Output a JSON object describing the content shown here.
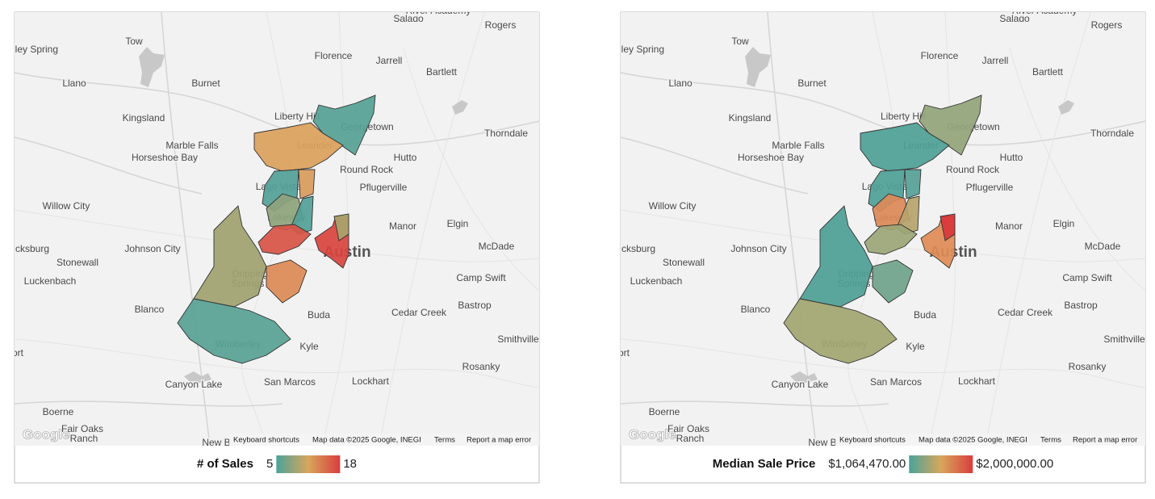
{
  "places": [
    "Salado",
    "River Academy",
    "Rogers",
    "Tow",
    "lley Spring",
    "Florence",
    "Jarrell",
    "Bartlett",
    "Llano",
    "Burnet",
    "Liberty Hill",
    "Georgetown",
    "Kingsland",
    "Thorndale",
    "Leander",
    "Marble Falls",
    "Horseshoe Bay",
    "Hutto",
    "Round Rock",
    "Pflugerville",
    "Lago Vista",
    "Willow City",
    "Elgin",
    "Manor",
    "Lakeway",
    "cksburg",
    "Johnson City",
    "McDade",
    "Austin",
    "Stonewall",
    "Luckenbach",
    "Camp Swift",
    "Dripping",
    "Springs",
    "Blanco",
    "Bastrop",
    "Cedar Creek",
    "Buda",
    "Smithville",
    "ort",
    "Wimberley",
    "Kyle",
    "Rosanky",
    "Canyon Lake",
    "San Marcos",
    "Lockhart",
    "Boerne",
    "Fair Oaks",
    "Ranch",
    "New B"
  ],
  "attribution": [
    "Keyboard shortcuts",
    "Map data ©2025 Google, INEGI",
    "Terms",
    "Report a map error"
  ],
  "logo": "Google",
  "maps": [
    {
      "legend": {
        "title": "# of Sales",
        "min": "5",
        "max": "18"
      }
    },
    {
      "legend": {
        "title": "Median Sale Price",
        "min": "$1,064,470.00",
        "max": "$2,000,000.00"
      }
    }
  ]
}
